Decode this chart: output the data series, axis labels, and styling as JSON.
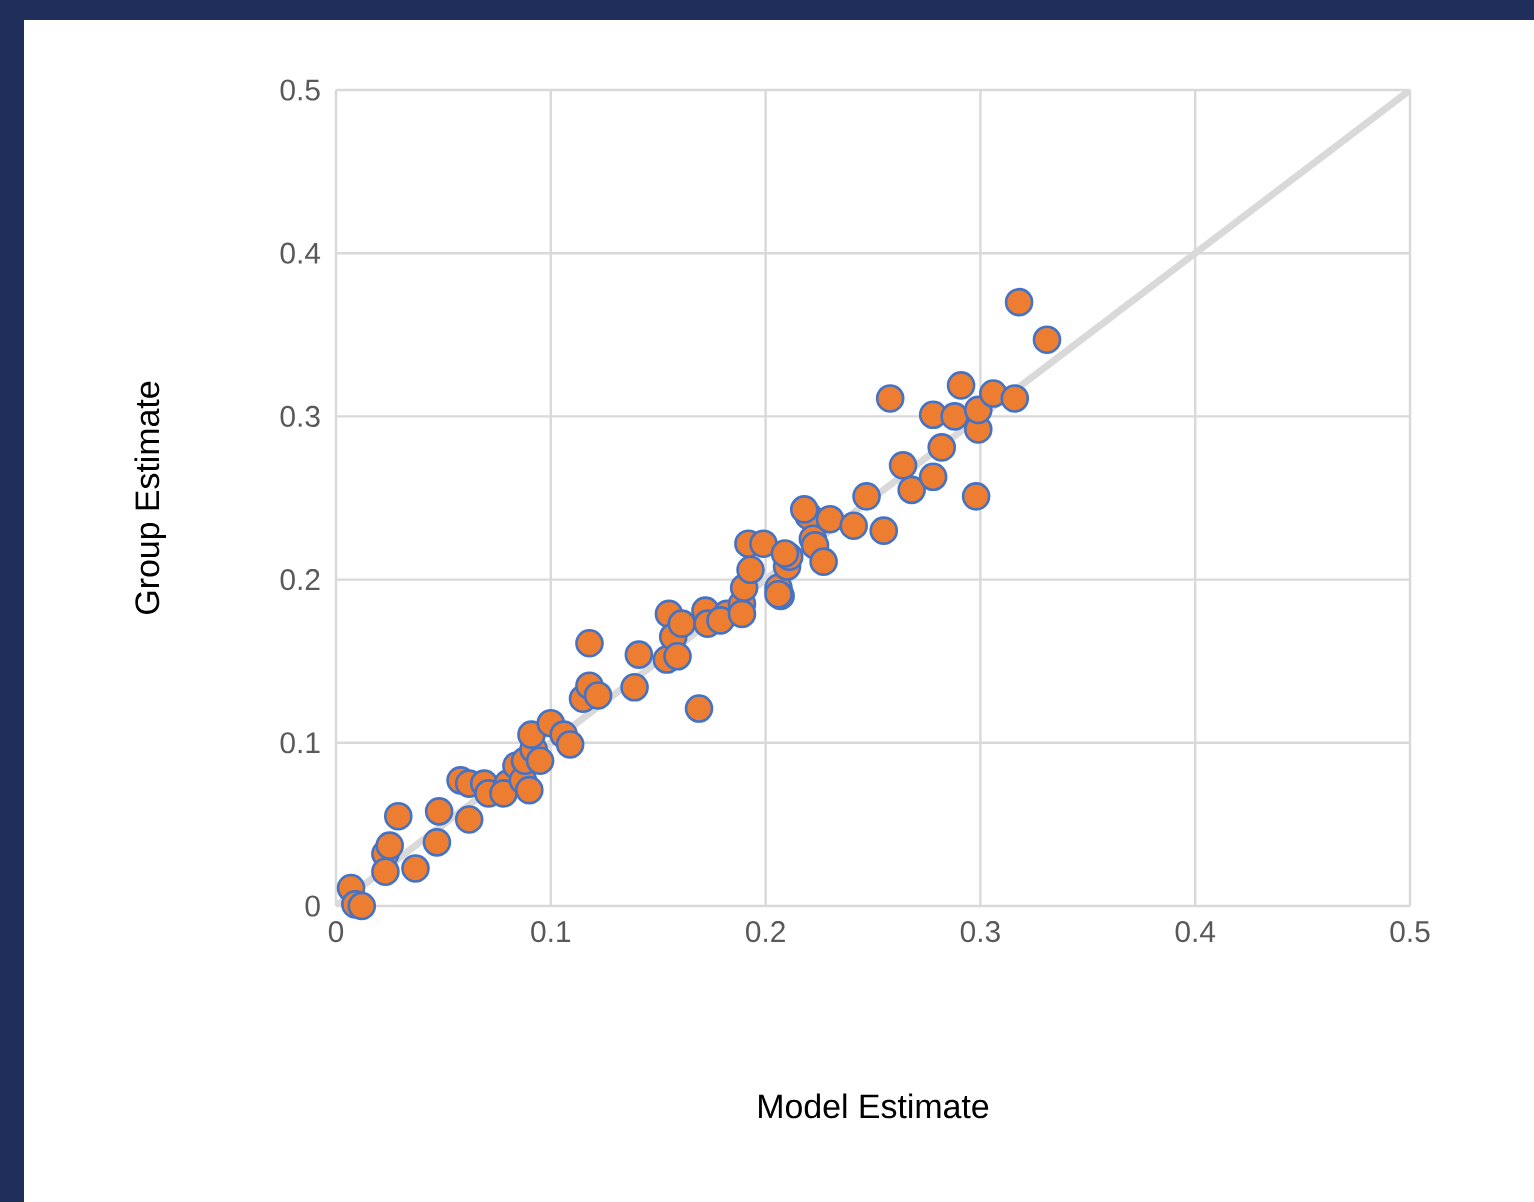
{
  "chart_data": {
    "type": "scatter",
    "xlabel": "Model Estimate",
    "ylabel": "Group Estimate",
    "xlim": [
      0,
      0.5
    ],
    "ylim": [
      0,
      0.5
    ],
    "xticks": [
      0,
      0.1,
      0.2,
      0.3,
      0.4,
      0.5
    ],
    "yticks": [
      0,
      0.1,
      0.2,
      0.3,
      0.4,
      0.5
    ],
    "grid": true,
    "series": [
      {
        "type": "line",
        "color": "#d9d9d9",
        "line_style": "solid",
        "marker": "none",
        "x": [
          0,
          0.5
        ],
        "values": [
          0,
          0.5
        ]
      },
      {
        "marker": "circle",
        "color": "#ed7d31",
        "x": [
          0.007,
          0.009,
          0.012,
          0.023,
          0.025,
          0.023,
          0.029,
          0.037,
          0.047,
          0.048,
          0.058,
          0.062,
          0.062,
          0.069,
          0.071,
          0.08,
          0.078,
          0.084,
          0.087,
          0.088,
          0.09,
          0.092,
          0.091,
          0.095,
          0.1,
          0.106,
          0.109,
          0.115,
          0.118,
          0.122,
          0.118,
          0.139,
          0.141,
          0.155,
          0.154,
          0.157,
          0.161,
          0.159,
          0.169,
          0.172,
          0.173,
          0.182,
          0.179,
          0.189,
          0.19,
          0.189,
          0.193,
          0.192,
          0.199,
          0.206,
          0.207,
          0.21,
          0.211,
          0.22,
          0.222,
          0.218,
          0.23,
          0.241,
          0.247,
          0.255,
          0.264,
          0.268,
          0.278,
          0.282,
          0.278,
          0.288,
          0.299,
          0.299,
          0.298,
          0.258,
          0.291,
          0.306,
          0.316,
          0.223,
          0.227,
          0.209,
          0.206,
          0.318,
          0.331
        ],
        "values": [
          0.011,
          0.001,
          0.0,
          0.032,
          0.037,
          0.021,
          0.055,
          0.023,
          0.039,
          0.058,
          0.077,
          0.053,
          0.075,
          0.075,
          0.069,
          0.075,
          0.069,
          0.086,
          0.077,
          0.089,
          0.071,
          0.096,
          0.105,
          0.089,
          0.112,
          0.105,
          0.099,
          0.127,
          0.135,
          0.129,
          0.161,
          0.134,
          0.154,
          0.179,
          0.151,
          0.165,
          0.173,
          0.153,
          0.121,
          0.181,
          0.173,
          0.179,
          0.175,
          0.185,
          0.195,
          0.179,
          0.206,
          0.222,
          0.222,
          0.195,
          0.19,
          0.208,
          0.214,
          0.239,
          0.225,
          0.243,
          0.237,
          0.233,
          0.251,
          0.23,
          0.27,
          0.255,
          0.263,
          0.281,
          0.301,
          0.3,
          0.292,
          0.304,
          0.251,
          0.311,
          0.319,
          0.314,
          0.311,
          0.221,
          0.211,
          0.216,
          0.191,
          0.37,
          0.347
        ]
      }
    ]
  }
}
